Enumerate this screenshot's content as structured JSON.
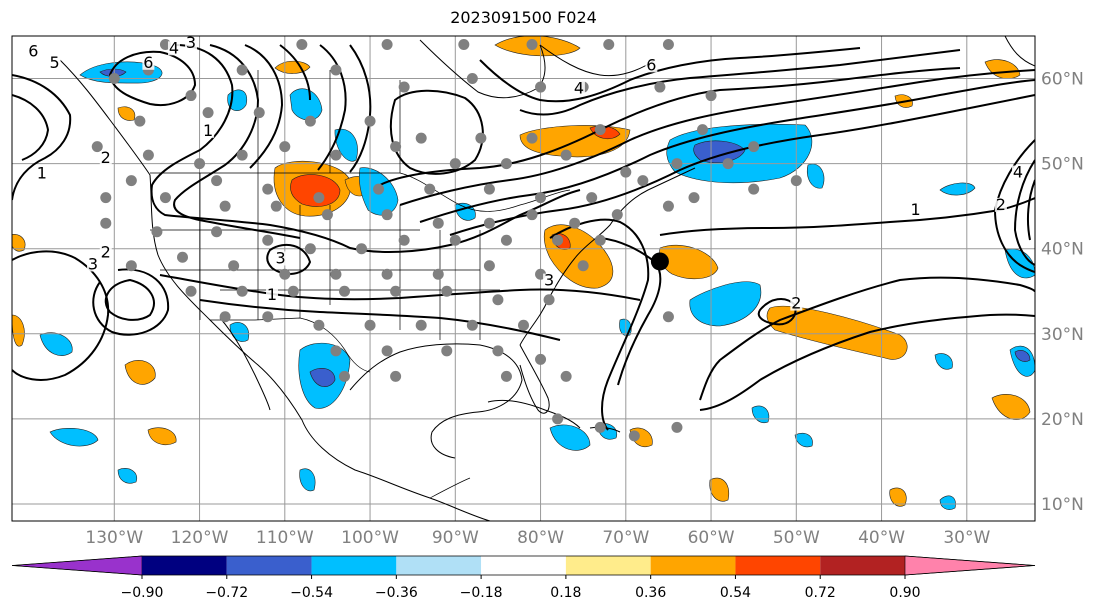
{
  "title": "2023091500 F024",
  "map": {
    "projection": "cylindrical",
    "lon_range": [
      -142,
      -22
    ],
    "lat_range": [
      8,
      65
    ],
    "gridlines": true,
    "lon_ticks": [
      {
        "value": -130,
        "label": "130°W"
      },
      {
        "value": -120,
        "label": "120°W"
      },
      {
        "value": -110,
        "label": "110°W"
      },
      {
        "value": -100,
        "label": "100°W"
      },
      {
        "value": -90,
        "label": "90°W"
      },
      {
        "value": -80,
        "label": "80°W"
      },
      {
        "value": -70,
        "label": "70°W"
      },
      {
        "value": -60,
        "label": "60°W"
      },
      {
        "value": -50,
        "label": "50°W"
      },
      {
        "value": -40,
        "label": "40°W"
      },
      {
        "value": -30,
        "label": "30°W"
      }
    ],
    "lat_ticks": [
      {
        "value": 60,
        "label": "60°N"
      },
      {
        "value": 50,
        "label": "50°N"
      },
      {
        "value": 40,
        "label": "40°N"
      },
      {
        "value": 30,
        "label": "30°N"
      },
      {
        "value": 20,
        "label": "20°N"
      },
      {
        "value": 10,
        "label": "10°N"
      }
    ],
    "contour_labels": [
      {
        "text": "6",
        "lon": -139.5,
        "lat": 62.8
      },
      {
        "text": "5",
        "lon": -137,
        "lat": 61.5
      },
      {
        "text": "6",
        "lon": -126,
        "lat": 61.5
      },
      {
        "text": "4",
        "lon": -123,
        "lat": 63.2
      },
      {
        "text": "3",
        "lon": -121,
        "lat": 63.8
      },
      {
        "text": "1",
        "lon": -119,
        "lat": 53.5
      },
      {
        "text": "2",
        "lon": -131,
        "lat": 50.3
      },
      {
        "text": "1",
        "lon": -138.5,
        "lat": 48.5
      },
      {
        "text": "3",
        "lon": -110.5,
        "lat": 38.5
      },
      {
        "text": "1",
        "lon": -111.5,
        "lat": 34.2
      },
      {
        "text": "2",
        "lon": -131,
        "lat": 39.2
      },
      {
        "text": "3",
        "lon": -132.5,
        "lat": 37.8
      },
      {
        "text": "3",
        "lon": -79,
        "lat": 35.9
      },
      {
        "text": "4",
        "lon": -75.5,
        "lat": 58.5
      },
      {
        "text": "6",
        "lon": -67,
        "lat": 61.2
      },
      {
        "text": "1",
        "lon": -36,
        "lat": 44.2
      },
      {
        "text": "2",
        "lon": -26,
        "lat": 44.8
      },
      {
        "text": "2",
        "lon": -50,
        "lat": 33.2
      },
      {
        "text": "4",
        "lon": -24,
        "lat": 48.6
      }
    ],
    "marker": {
      "lon": -66,
      "lat": 38.5,
      "color": "#000000"
    },
    "station_color": "#808080",
    "stations": [
      [
        -124,
        64
      ],
      [
        -108,
        64
      ],
      [
        -98,
        64
      ],
      [
        -89,
        64
      ],
      [
        -81,
        64
      ],
      [
        -72,
        64
      ],
      [
        -65,
        64
      ],
      [
        -130,
        60
      ],
      [
        -126,
        61
      ],
      [
        -121,
        58
      ],
      [
        -115,
        61
      ],
      [
        -104,
        61
      ],
      [
        -96,
        59
      ],
      [
        -88,
        60
      ],
      [
        -80,
        59
      ],
      [
        -75,
        59
      ],
      [
        -66,
        59
      ],
      [
        -60,
        58
      ],
      [
        -127,
        55
      ],
      [
        -119,
        56
      ],
      [
        -113,
        56
      ],
      [
        -107,
        55
      ],
      [
        -100,
        55
      ],
      [
        -94,
        53
      ],
      [
        -87,
        53
      ],
      [
        -81,
        53
      ],
      [
        -73,
        54
      ],
      [
        -61,
        54
      ],
      [
        -55,
        52
      ],
      [
        -132,
        52
      ],
      [
        -126,
        51
      ],
      [
        -120,
        50
      ],
      [
        -115,
        51
      ],
      [
        -110,
        52
      ],
      [
        -104,
        51
      ],
      [
        -97,
        52
      ],
      [
        -90,
        50
      ],
      [
        -84,
        50
      ],
      [
        -77,
        51
      ],
      [
        -70,
        49
      ],
      [
        -64,
        50
      ],
      [
        -58,
        50
      ],
      [
        -128,
        48
      ],
      [
        -118,
        48
      ],
      [
        -112,
        47
      ],
      [
        -106,
        46
      ],
      [
        -99,
        47
      ],
      [
        -93,
        47
      ],
      [
        -86,
        47
      ],
      [
        -80,
        46
      ],
      [
        -74,
        46
      ],
      [
        -68,
        48
      ],
      [
        -62,
        46
      ],
      [
        -55,
        47
      ],
      [
        -50,
        48
      ],
      [
        -131,
        46
      ],
      [
        -124,
        46
      ],
      [
        -117,
        45
      ],
      [
        -111,
        45
      ],
      [
        -105,
        44
      ],
      [
        -98,
        44
      ],
      [
        -92,
        43
      ],
      [
        -86,
        43
      ],
      [
        -81,
        44
      ],
      [
        -76,
        43
      ],
      [
        -71,
        44
      ],
      [
        -65,
        45
      ],
      [
        -131,
        43
      ],
      [
        -125,
        42
      ],
      [
        -118,
        42
      ],
      [
        -112,
        41
      ],
      [
        -107,
        40
      ],
      [
        -101,
        40
      ],
      [
        -96,
        41
      ],
      [
        -90,
        41
      ],
      [
        -84,
        41
      ],
      [
        -78,
        41
      ],
      [
        -73,
        41
      ],
      [
        -128,
        38
      ],
      [
        -122,
        39
      ],
      [
        -116,
        38
      ],
      [
        -110,
        37
      ],
      [
        -104,
        37
      ],
      [
        -98,
        37
      ],
      [
        -92,
        37
      ],
      [
        -86,
        38
      ],
      [
        -80,
        37
      ],
      [
        -75,
        38
      ],
      [
        -121,
        35
      ],
      [
        -115,
        35
      ],
      [
        -109,
        35
      ],
      [
        -103,
        35
      ],
      [
        -97,
        35
      ],
      [
        -91,
        35
      ],
      [
        -85,
        34
      ],
      [
        -79,
        34
      ],
      [
        -117,
        32
      ],
      [
        -112,
        32
      ],
      [
        -106,
        31
      ],
      [
        -100,
        31
      ],
      [
        -94,
        31
      ],
      [
        -88,
        31
      ],
      [
        -82,
        31
      ],
      [
        -104,
        28
      ],
      [
        -98,
        28
      ],
      [
        -91,
        28
      ],
      [
        -85,
        28
      ],
      [
        -80,
        27
      ],
      [
        -103,
        25
      ],
      [
        -97,
        25
      ],
      [
        -84,
        25
      ],
      [
        -77,
        25
      ],
      [
        -78,
        20
      ],
      [
        -73,
        19
      ],
      [
        -69,
        18
      ],
      [
        -64,
        19
      ],
      [
        -65,
        32
      ]
    ]
  },
  "colorbar": {
    "colors": [
      "#9932CC",
      "#000080",
      "#3A5FCD",
      "#00BFFF",
      "#B0E0F6",
      "#FFFFFF",
      "#FFEC8B",
      "#FFA500",
      "#FF4500",
      "#B22222",
      "#FF82AB"
    ],
    "labels": [
      "−0.90",
      "−0.72",
      "−0.54",
      "−0.36",
      "−0.18",
      "0.18",
      "0.36",
      "0.54",
      "0.72",
      "0.90"
    ]
  }
}
